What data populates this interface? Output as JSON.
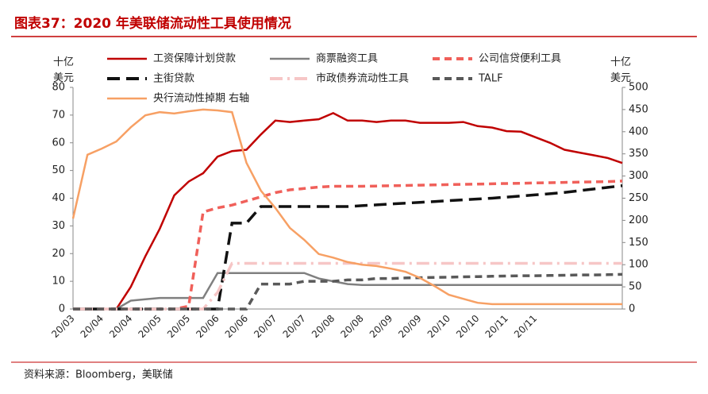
{
  "chart_data": {
    "type": "line",
    "title": "图表37：2020 年美联储流动性工具使用情况",
    "source": "资料来源：Bloomberg，美联储",
    "y_label": "十亿美元",
    "y2_label": "十亿美元",
    "categories": [
      "20/03",
      null,
      "20/04",
      null,
      "20/04",
      null,
      "20/05",
      null,
      "20/05",
      null,
      "20/06",
      null,
      "20/06",
      null,
      "20/07",
      null,
      "20/07",
      null,
      "20/08",
      null,
      "20/08",
      null,
      "20/09",
      null,
      "20/09",
      null,
      "20/10",
      null,
      "20/10",
      null,
      "20/11",
      null,
      "20/11",
      null,
      null,
      null,
      null,
      null,
      null
    ],
    "ylim": [
      0,
      80
    ],
    "yticks": [
      0,
      10,
      20,
      30,
      40,
      50,
      60,
      70,
      80
    ],
    "y2lim": [
      0,
      500
    ],
    "y2ticks": [
      0,
      50,
      100,
      150,
      200,
      250,
      300,
      350,
      400,
      450,
      500
    ],
    "series": [
      {
        "name": "工资保障计划贷款",
        "color": "#c00000",
        "dash": "solid",
        "values": [
          0,
          0,
          0,
          0,
          8,
          19,
          29,
          41,
          46,
          49,
          55,
          57,
          57.5,
          63,
          68,
          67.5,
          68,
          68.5,
          70.7,
          68,
          68,
          67.5,
          68,
          68,
          67.2,
          67.2,
          67.2,
          67.5,
          66,
          65.5,
          64.2,
          64,
          62,
          60,
          57.5,
          56.5,
          55.5,
          54.5,
          52.7
        ]
      },
      {
        "name": "商票融资工具",
        "color": "#808080",
        "dash": "solid",
        "values": [
          0,
          0,
          0,
          0,
          3,
          3.5,
          4,
          4,
          4,
          4,
          13,
          13,
          13,
          13,
          13,
          13,
          13,
          11,
          10,
          9,
          8.7,
          8.7,
          8.7,
          8.7,
          8.7,
          8.7,
          8.7,
          8.7,
          8.7,
          8.7,
          8.7,
          8.7,
          8.7,
          8.7,
          8.7,
          8.7,
          8.7,
          8.7,
          8.7
        ]
      },
      {
        "name": "公司信贷便利工具",
        "color": "#f0605a",
        "dash": "dash",
        "values": [
          0,
          0,
          0,
          0,
          0,
          0,
          0,
          0,
          1,
          35,
          36.5,
          37.5,
          39,
          40.5,
          42,
          43,
          43.5,
          44,
          44.3,
          44.3,
          44.3,
          44.4,
          44.5,
          44.6,
          44.7,
          44.8,
          44.9,
          45,
          45.1,
          45.2,
          45.3,
          45.4,
          45.5,
          45.6,
          45.7,
          45.8,
          45.9,
          46,
          46.2
        ]
      },
      {
        "name": "主街贷款",
        "color": "#111111",
        "dash": "longdash",
        "values": [
          0,
          0,
          0,
          0,
          0,
          0,
          0,
          0,
          0,
          0,
          0,
          31,
          31,
          37,
          37,
          37,
          37,
          37,
          37,
          37,
          37.3,
          37.6,
          37.9,
          38.2,
          38.5,
          38.8,
          39.1,
          39.4,
          39.7,
          40,
          40.4,
          40.8,
          41.2,
          41.6,
          42.1,
          42.7,
          43.3,
          43.9,
          44.5
        ]
      },
      {
        "name": "市政债券流动性工具",
        "color": "#f6c6c6",
        "dash": "dashdot",
        "values": [
          0,
          0,
          0,
          0,
          0,
          0,
          0,
          0,
          0,
          0,
          6,
          16.5,
          16.5,
          16.5,
          16.5,
          16.5,
          16.5,
          16.5,
          16.5,
          16.5,
          16.5,
          16.5,
          16.5,
          16.5,
          16.5,
          16.5,
          16.5,
          16.5,
          16.5,
          16.5,
          16.5,
          16.5,
          16.5,
          16.5,
          16.5,
          16.5,
          16.5,
          16.5,
          16.5
        ]
      },
      {
        "name": "TALF",
        "color": "#595959",
        "dash": "dash",
        "values": [
          0,
          0,
          0,
          0,
          0,
          0,
          0,
          0,
          0,
          0,
          0,
          0,
          0,
          9,
          9,
          9,
          10,
          10,
          10,
          10.5,
          10.5,
          11,
          11,
          11.2,
          11.3,
          11.4,
          11.5,
          11.6,
          11.7,
          11.8,
          11.9,
          12,
          12,
          12.1,
          12.2,
          12.3,
          12.3,
          12.4,
          12.5
        ]
      },
      {
        "name": "央行流动性掉期 右轴",
        "color": "#f7a064",
        "dash": "solid",
        "axis": "y2",
        "values": [
          204,
          348,
          362,
          378,
          410,
          437,
          444,
          441,
          446,
          450,
          448,
          444,
          330,
          267,
          228,
          183,
          156,
          124,
          116,
          106,
          100,
          97,
          91,
          84,
          70,
          52,
          32,
          23,
          14,
          11,
          11,
          11,
          11,
          11,
          11,
          11,
          11,
          11,
          11
        ]
      }
    ]
  }
}
